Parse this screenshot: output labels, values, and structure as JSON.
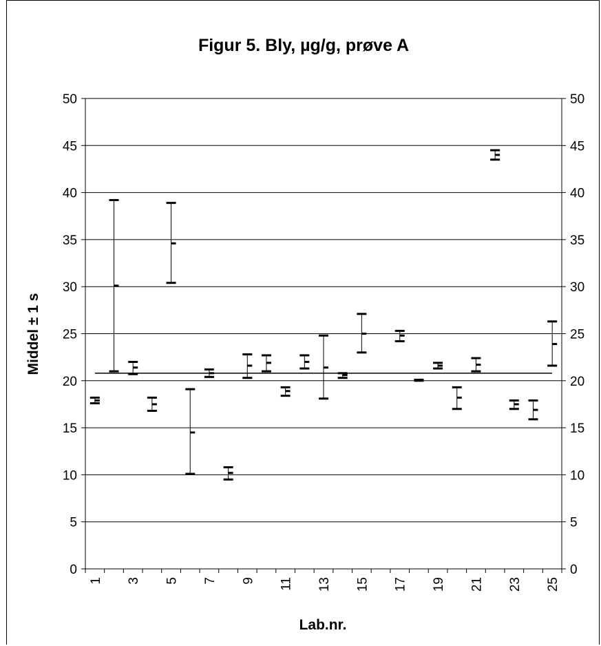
{
  "chart_data": {
    "type": "errorbar",
    "title": "Figur 5. Bly, µg/g, prøve A",
    "xlabel": "Lab.nr.",
    "ylabel": "Middel ± 1 s",
    "ylim": [
      0,
      50
    ],
    "y_ticks": [
      "0",
      "5",
      "10",
      "15",
      "20",
      "25",
      "30",
      "35",
      "40",
      "45",
      "50"
    ],
    "x_tick_labels": [
      "1",
      "3",
      "5",
      "7",
      "9",
      "11",
      "13",
      "15",
      "17",
      "19",
      "21",
      "23",
      "25"
    ],
    "reference_line": 20.8,
    "grid": true,
    "labs": [
      1,
      2,
      3,
      4,
      5,
      6,
      7,
      8,
      9,
      10,
      11,
      12,
      13,
      14,
      15,
      16,
      17,
      18,
      19,
      20,
      21,
      22,
      23,
      24,
      25
    ],
    "mean": [
      17.9,
      30.1,
      21.4,
      17.5,
      34.6,
      14.5,
      20.8,
      10.2,
      21.6,
      21.9,
      18.9,
      22.0,
      21.4,
      20.6,
      25.0,
      null,
      24.8,
      20.1,
      21.6,
      18.2,
      21.7,
      44.0,
      17.5,
      16.9,
      23.9
    ],
    "lower": [
      17.6,
      21.0,
      20.7,
      16.8,
      30.4,
      10.1,
      20.4,
      9.5,
      20.3,
      21.0,
      18.4,
      21.3,
      18.1,
      20.3,
      23.0,
      null,
      24.2,
      20.0,
      21.3,
      17.0,
      21.0,
      43.5,
      17.0,
      15.9,
      21.6
    ],
    "upper": [
      18.2,
      39.2,
      22.0,
      18.2,
      38.9,
      19.1,
      21.2,
      10.8,
      22.8,
      22.7,
      19.3,
      22.7,
      24.8,
      20.8,
      27.1,
      null,
      25.3,
      20.1,
      21.9,
      19.3,
      22.4,
      44.5,
      17.9,
      17.9,
      26.3
    ]
  }
}
